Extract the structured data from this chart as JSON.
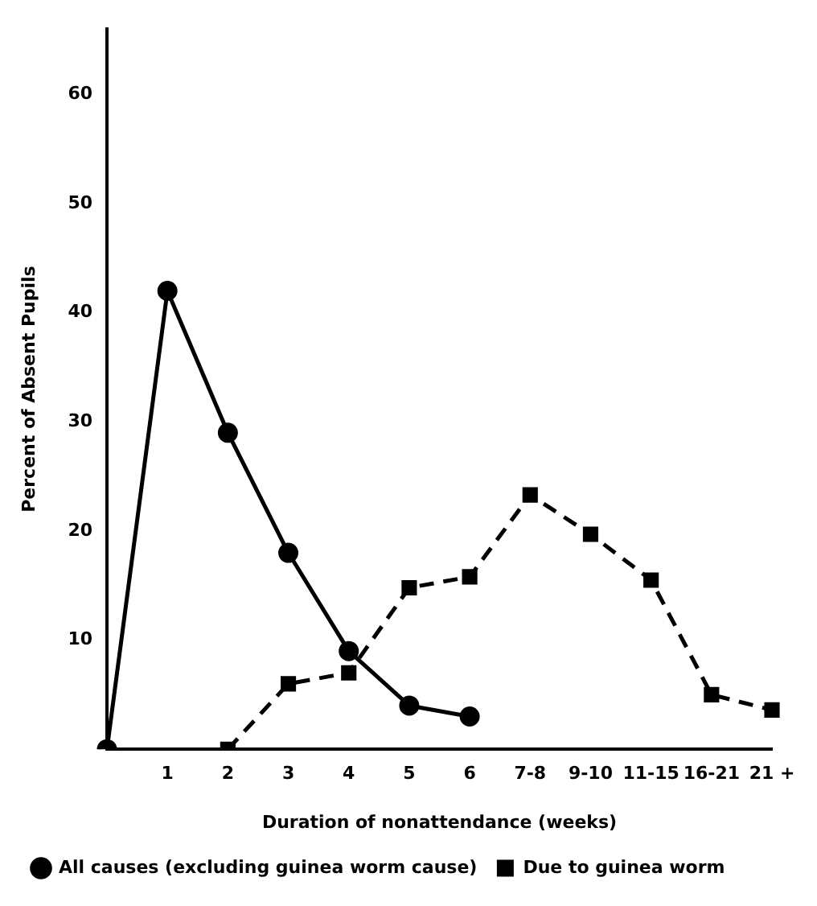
{
  "chart_data": {
    "type": "line",
    "xlabel": "Duration of nonattendance (weeks)",
    "ylabel": "Percent of Absent Pupils",
    "categories": [
      null,
      "1",
      "2",
      "3",
      "4",
      "5",
      "6",
      "7-8",
      "9-10",
      "11-15",
      "16-21",
      "21 +"
    ],
    "series": [
      {
        "name": "All causes (excluding guinea worm cause)",
        "color": "#000000",
        "marker": "circle",
        "line_style": "solid",
        "values": [
          0,
          42,
          29,
          18,
          9,
          4,
          3,
          null,
          null,
          null,
          null,
          null
        ]
      },
      {
        "name": "Due to guinea worm",
        "color": "#000000",
        "marker": "square",
        "line_style": "dashed",
        "values": [
          null,
          null,
          0,
          6,
          7,
          14.8,
          15.8,
          23.3,
          19.7,
          15.5,
          5,
          3.6
        ]
      }
    ],
    "ylim": [
      0,
      66
    ],
    "yticks": [
      10,
      20,
      30,
      40,
      50,
      60
    ],
    "grid": false,
    "legend": "bottom"
  }
}
